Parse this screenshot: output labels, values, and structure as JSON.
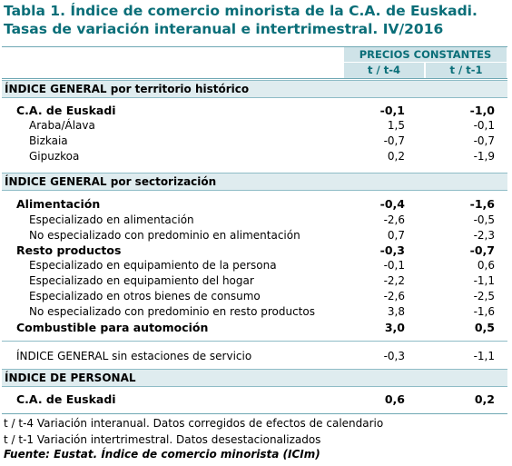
{
  "title": {
    "line1": "Tabla 1. Índice de comercio minorista de la C.A. de Euskadi.",
    "line2": "Tasas de variación interanual e intertrimestral. IV/2016"
  },
  "header": {
    "group": "PRECIOS CONSTANTES",
    "col1": "t / t-4",
    "col2": "t / t-1"
  },
  "sections": {
    "territorio": "ÍNDICE GENERAL por territorio histórico",
    "sectorizacion": "ÍNDICE GENERAL por sectorización",
    "personal": "ÍNDICE DE PERSONAL"
  },
  "rows": [
    {
      "label": "C.A. de Euskadi",
      "v1": "-0,1",
      "v2": "-1,0"
    },
    {
      "label": "Araba/Álava",
      "v1": "1,5",
      "v2": "-0,1"
    },
    {
      "label": "Bizkaia",
      "v1": "-0,7",
      "v2": "-0,7"
    },
    {
      "label": "Gipuzkoa",
      "v1": "0,2",
      "v2": "-1,9"
    },
    {
      "label": "Alimentación",
      "v1": "-0,4",
      "v2": "-1,6"
    },
    {
      "label": "Especializado en alimentación",
      "v1": "-2,6",
      "v2": "-0,5"
    },
    {
      "label": "No especializado con predominio en alimentación",
      "v1": "0,7",
      "v2": "-2,3"
    },
    {
      "label": "Resto productos",
      "v1": "-0,3",
      "v2": "-0,7"
    },
    {
      "label": "Especializado en equipamiento de la persona",
      "v1": "-0,1",
      "v2": "0,6"
    },
    {
      "label": "Especializado en equipamiento del hogar",
      "v1": "-2,2",
      "v2": "-1,1"
    },
    {
      "label": "Especializado en otros bienes de consumo",
      "v1": "-2,6",
      "v2": "-2,5"
    },
    {
      "label": "No especializado con predominio en resto productos",
      "v1": "3,8",
      "v2": "-1,6"
    },
    {
      "label": "Combustible para automoción",
      "v1": "3,0",
      "v2": "0,5"
    },
    {
      "label": "ÍNDICE GENERAL sin estaciones de servicio",
      "v1": "-0,3",
      "v2": "-1,1"
    },
    {
      "label": "C.A. de Euskadi",
      "v1": "0,6",
      "v2": "0,2"
    }
  ],
  "notes": {
    "n1": "t / t-4 Variación interanual. Datos corregidos de efectos de calendario",
    "n2": "t / t-1 Variación intertrimestral. Datos desestacionalizados",
    "source": "Fuente: Eustat. Índice de comercio minorista (ICIm)"
  },
  "colors": {
    "title": "#0a6e78",
    "header_bg": "#cfe3e8",
    "section_bg": "#dfecef",
    "rule": "#6fa8b4"
  }
}
